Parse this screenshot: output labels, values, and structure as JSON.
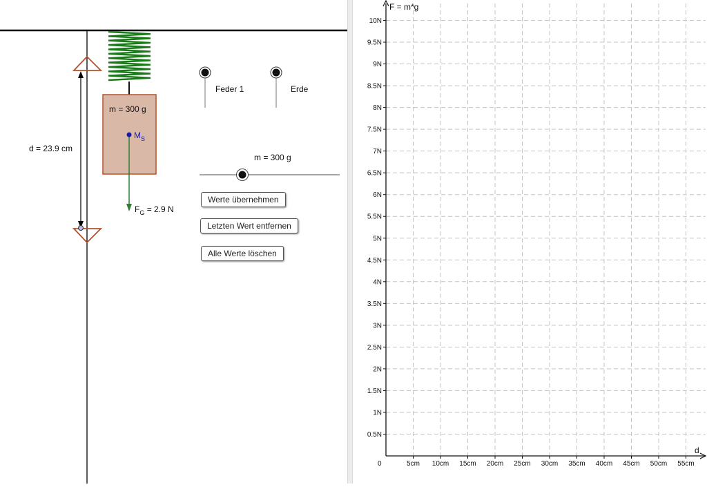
{
  "simulation": {
    "mass_label": "m = 300 g",
    "center_of_mass_label": "M",
    "center_of_mass_sub": "S",
    "distance_label": "d = 23.9 cm",
    "force_label_main": "F",
    "force_label_sub": "G",
    "force_label_value": " = 2.9 N",
    "spring_color": "#1a7a1a",
    "mass_fill": "#d9b8a8",
    "mass_border": "#b5502c",
    "arrow_color": "#2e7d32",
    "triangle_color": "#b5502c"
  },
  "controls": {
    "option_spring_label": "Feder 1",
    "option_planet_label": "Erde",
    "mass_slider_label": "m = 300 g",
    "mass_slider_value": 300,
    "buttons": {
      "apply": "Werte übernehmen",
      "remove_last": "Letzten Wert entfernen",
      "clear_all": "Alle Werte löschen"
    }
  },
  "graph": {
    "y_axis_label": "F = m*g",
    "x_axis_label": "d",
    "origin_label": "0",
    "x_ticks": [
      "5cm",
      "10cm",
      "15cm",
      "20cm",
      "25cm",
      "30cm",
      "35cm",
      "40cm",
      "45cm",
      "50cm",
      "55cm"
    ],
    "y_ticks": [
      "0.5N",
      "1N",
      "1.5N",
      "2N",
      "2.5N",
      "3N",
      "3.5N",
      "4N",
      "4.5N",
      "5N",
      "5.5N",
      "6N",
      "6.5N",
      "7N",
      "7.5N",
      "8N",
      "8.5N",
      "9N",
      "9.5N",
      "10N"
    ]
  }
}
